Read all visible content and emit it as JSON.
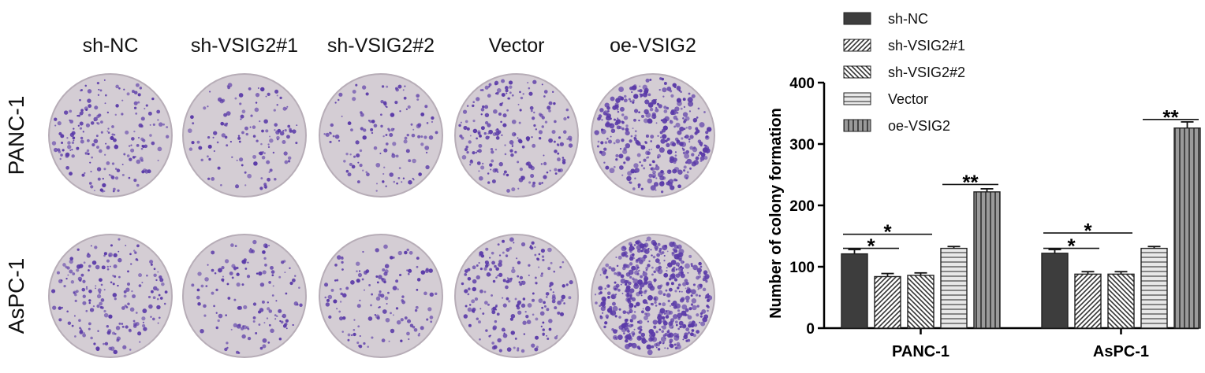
{
  "plates": {
    "columns": [
      "sh-NC",
      "sh-VSIG2#1",
      "sh-VSIG2#2",
      "Vector",
      "oe-VSIG2"
    ],
    "rows": [
      "PANC-1",
      "AsPC-1"
    ],
    "colony_density": [
      [
        120,
        80,
        80,
        130,
        220
      ],
      [
        120,
        85,
        85,
        130,
        325
      ]
    ],
    "colors": {
      "dish": "#d4cdd4",
      "dish_edge": "#b7adb7",
      "colony": "#5a3aa8"
    }
  },
  "chart_data": {
    "type": "bar",
    "categories": [
      "PANC-1",
      "AsPC-1"
    ],
    "series": [
      {
        "name": "sh-NC",
        "values": [
          121,
          122
        ],
        "errors": [
          7,
          6
        ],
        "pattern": "solid"
      },
      {
        "name": "sh-VSIG2#1",
        "values": [
          84,
          88
        ],
        "errors": [
          5,
          4
        ],
        "pattern": "diag-right"
      },
      {
        "name": "sh-VSIG2#2",
        "values": [
          86,
          88
        ],
        "errors": [
          4,
          4
        ],
        "pattern": "diag-left"
      },
      {
        "name": "Vector",
        "values": [
          130,
          130
        ],
        "errors": [
          3,
          3
        ],
        "pattern": "horizontal"
      },
      {
        "name": "oe-VSIG2",
        "values": [
          222,
          326
        ],
        "errors": [
          5,
          10
        ],
        "pattern": "vertical"
      }
    ],
    "ylabel": "Number of colony formation",
    "xlabel": "",
    "ylim": [
      0,
      400
    ],
    "yticks": [
      0,
      100,
      200,
      300,
      400
    ],
    "legend_position": "top-left",
    "grid": false,
    "annotations": [
      {
        "text": "*",
        "category": 0,
        "from_series": 0,
        "to_series": 1,
        "y": 130
      },
      {
        "text": "*",
        "category": 0,
        "from_series": 0,
        "to_series": 2,
        "y": 153
      },
      {
        "text": "**",
        "category": 0,
        "from_series": 3,
        "to_series": 4,
        "y": 234
      },
      {
        "text": "*",
        "category": 1,
        "from_series": 0,
        "to_series": 1,
        "y": 130
      },
      {
        "text": "*",
        "category": 1,
        "from_series": 0,
        "to_series": 2,
        "y": 155
      },
      {
        "text": "**",
        "category": 1,
        "from_series": 3,
        "to_series": 4,
        "y": 340
      }
    ],
    "colors": {
      "bar_fill": "#3d3d3d",
      "bar_light": "#e8e8e8",
      "axis": "#000000"
    }
  }
}
